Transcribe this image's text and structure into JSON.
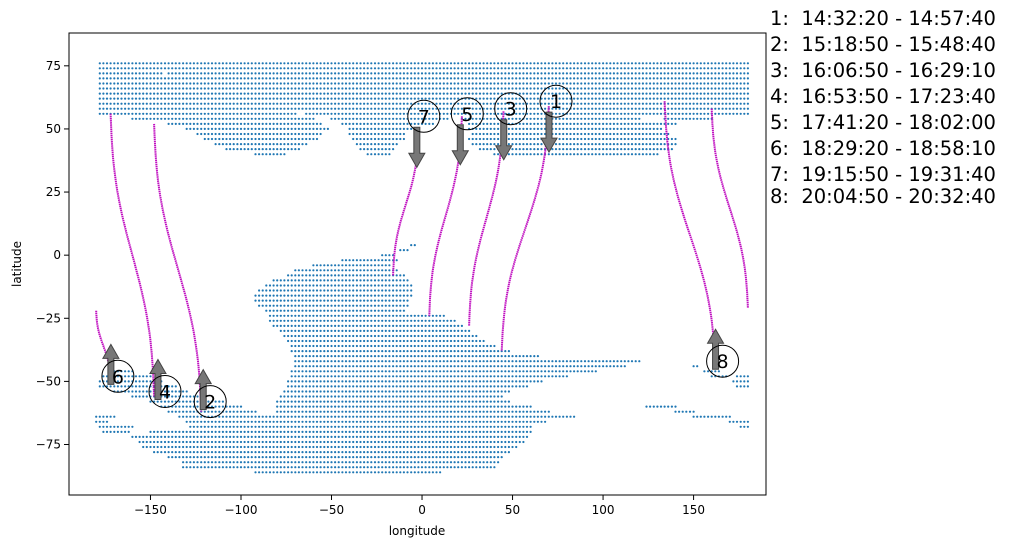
{
  "chart_data": {
    "type": "scatter",
    "xlabel": "longitude",
    "ylabel": "latitude",
    "xlim": [
      -195,
      190
    ],
    "ylim": [
      -95,
      88
    ],
    "xticks": [
      -150,
      -100,
      -50,
      0,
      50,
      100,
      150
    ],
    "yticks": [
      -75,
      -50,
      -25,
      0,
      25,
      50,
      75
    ],
    "colors": {
      "points": "#1f77b4",
      "tracks": "#c010c0",
      "arrows": "#777777"
    },
    "land_mask": {
      "lat_step": 2,
      "lon_step": 2,
      "rows": [
        {
          "lat": 76,
          "lon": [
            [
              -178,
              180
            ]
          ]
        },
        {
          "lat": 74,
          "lon": [
            [
              -178,
              -148
            ],
            [
              -146,
              180
            ]
          ]
        },
        {
          "lat": 72,
          "lon": [
            [
              -178,
              -144
            ],
            [
              -140,
              180
            ]
          ]
        },
        {
          "lat": 70,
          "lon": [
            [
              -178,
              180
            ]
          ]
        },
        {
          "lat": 68,
          "lon": [
            [
              -178,
              180
            ]
          ]
        },
        {
          "lat": 66,
          "lon": [
            [
              -178,
              180
            ]
          ]
        },
        {
          "lat": 64,
          "lon": [
            [
              -178,
              180
            ]
          ]
        },
        {
          "lat": 62,
          "lon": [
            [
              -178,
              180
            ]
          ]
        },
        {
          "lat": 60,
          "lon": [
            [
              -178,
              180
            ]
          ]
        },
        {
          "lat": 58,
          "lon": [
            [
              -178,
              180
            ]
          ]
        },
        {
          "lat": 56,
          "lon": [
            [
              -178,
              -70
            ],
            [
              -64,
              180
            ]
          ]
        },
        {
          "lat": 54,
          "lon": [
            [
              -160,
              -60
            ],
            [
              -50,
              14
            ],
            [
              22,
              120
            ],
            [
              134,
              160
            ]
          ]
        },
        {
          "lat": 52,
          "lon": [
            [
              -140,
              -56
            ],
            [
              -44,
              6
            ],
            [
              26,
              140
            ]
          ]
        },
        {
          "lat": 50,
          "lon": [
            [
              -130,
              -52
            ],
            [
              -40,
              -6
            ],
            [
              26,
              132
            ]
          ]
        },
        {
          "lat": 48,
          "lon": [
            [
              -124,
              -56
            ],
            [
              -40,
              -10
            ],
            [
              28,
              136
            ]
          ]
        },
        {
          "lat": 46,
          "lon": [
            [
              -120,
              -58
            ],
            [
              -38,
              -10
            ],
            [
              26,
              140
            ]
          ]
        },
        {
          "lat": 44,
          "lon": [
            [
              -114,
              -64
            ],
            [
              -36,
              -14
            ],
            [
              28,
              140
            ]
          ]
        },
        {
          "lat": 42,
          "lon": [
            [
              -108,
              -68
            ],
            [
              -34,
              -16
            ],
            [
              32,
              138
            ]
          ]
        },
        {
          "lat": 40,
          "lon": [
            [
              -92,
              -76
            ],
            [
              -30,
              -18
            ],
            [
              40,
              130
            ]
          ]
        },
        {
          "lat": 38,
          "lon": []
        },
        {
          "lat": 4,
          "lon": [
            [
              -6,
              -4
            ]
          ]
        },
        {
          "lat": 2,
          "lon": [
            [
              -12,
              -8
            ]
          ]
        },
        {
          "lat": 0,
          "lon": [
            [
              -22,
              -16
            ]
          ]
        },
        {
          "lat": -2,
          "lon": [
            [
              -44,
              -14
            ]
          ]
        },
        {
          "lat": -4,
          "lon": [
            [
              -60,
              -18
            ]
          ]
        },
        {
          "lat": -6,
          "lon": [
            [
              -70,
              -14
            ]
          ]
        },
        {
          "lat": -8,
          "lon": [
            [
              -74,
              -10
            ]
          ]
        },
        {
          "lat": -10,
          "lon": [
            [
              -82,
              -8
            ]
          ]
        },
        {
          "lat": -12,
          "lon": [
            [
              -86,
              -6
            ]
          ]
        },
        {
          "lat": -14,
          "lon": [
            [
              -90,
              -6
            ]
          ]
        },
        {
          "lat": -16,
          "lon": [
            [
              -92,
              -6
            ]
          ]
        },
        {
          "lat": -18,
          "lon": [
            [
              -92,
              -8
            ]
          ]
        },
        {
          "lat": -20,
          "lon": [
            [
              -90,
              -8
            ]
          ]
        },
        {
          "lat": -22,
          "lon": [
            [
              -86,
              -10
            ]
          ]
        },
        {
          "lat": -24,
          "lon": [
            [
              -84,
              12
            ]
          ]
        },
        {
          "lat": -26,
          "lon": [
            [
              -84,
              18
            ]
          ]
        },
        {
          "lat": -28,
          "lon": [
            [
              -82,
              22
            ]
          ]
        },
        {
          "lat": -30,
          "lon": [
            [
              -78,
              26
            ]
          ]
        },
        {
          "lat": -32,
          "lon": [
            [
              -76,
              30
            ]
          ]
        },
        {
          "lat": -34,
          "lon": [
            [
              -74,
              34
            ]
          ]
        },
        {
          "lat": -36,
          "lon": [
            [
              -72,
              40
            ]
          ]
        },
        {
          "lat": -38,
          "lon": [
            [
              -72,
              48
            ]
          ]
        },
        {
          "lat": -40,
          "lon": [
            [
              -70,
              64
            ]
          ]
        },
        {
          "lat": -42,
          "lon": [
            [
              -70,
              120
            ]
          ]
        },
        {
          "lat": -44,
          "lon": [
            [
              -70,
              112
            ],
            [
              150,
              152
            ]
          ]
        },
        {
          "lat": -46,
          "lon": [
            [
              -170,
              -160
            ],
            [
              -72,
              96
            ],
            [
              156,
              164
            ]
          ]
        },
        {
          "lat": -48,
          "lon": [
            [
              -176,
              -150
            ],
            [
              -72,
              80
            ],
            [
              160,
              168
            ],
            [
              174,
              180
            ]
          ]
        },
        {
          "lat": -50,
          "lon": [
            [
              -178,
              -144
            ],
            [
              -74,
              66
            ],
            [
              172,
              180
            ]
          ]
        },
        {
          "lat": -52,
          "lon": [
            [
              -178,
              -136
            ],
            [
              -74,
              58
            ],
            [
              174,
              180
            ]
          ]
        },
        {
          "lat": -54,
          "lon": [
            [
              -170,
              -130
            ],
            [
              -76,
              48
            ]
          ]
        },
        {
          "lat": -56,
          "lon": [
            [
              -160,
              -120
            ],
            [
              -78,
              44
            ]
          ]
        },
        {
          "lat": -58,
          "lon": [
            [
              -150,
              -110
            ],
            [
              -80,
              48
            ]
          ]
        },
        {
          "lat": -60,
          "lon": [
            [
              -144,
              -100
            ],
            [
              -80,
              60
            ],
            [
              124,
              140
            ]
          ]
        },
        {
          "lat": -62,
          "lon": [
            [
              -140,
              -92
            ],
            [
              -80,
              70
            ],
            [
              140,
              150
            ]
          ]
        },
        {
          "lat": -64,
          "lon": [
            [
              -180,
              -170
            ],
            [
              -134,
              84
            ],
            [
              150,
              170
            ]
          ]
        },
        {
          "lat": -66,
          "lon": [
            [
              -180,
              -174
            ],
            [
              -130,
              68
            ],
            [
              170,
              180
            ]
          ]
        },
        {
          "lat": -68,
          "lon": [
            [
              -178,
              -160
            ],
            [
              -128,
              60
            ],
            [
              176,
              180
            ]
          ]
        },
        {
          "lat": -70,
          "lon": [
            [
              -176,
              -162
            ],
            [
              -150,
              60
            ]
          ]
        },
        {
          "lat": -72,
          "lon": [
            [
              -160,
              58
            ]
          ]
        },
        {
          "lat": -74,
          "lon": [
            [
              -156,
              56
            ]
          ]
        },
        {
          "lat": -76,
          "lon": [
            [
              -154,
              52
            ]
          ]
        },
        {
          "lat": -78,
          "lon": [
            [
              -148,
              48
            ]
          ]
        },
        {
          "lat": -80,
          "lon": [
            [
              -140,
              44
            ]
          ]
        },
        {
          "lat": -82,
          "lon": [
            [
              -132,
              42
            ]
          ]
        },
        {
          "lat": -84,
          "lon": [
            [
              -132,
              40
            ]
          ]
        },
        {
          "lat": -86,
          "lon": [
            [
              -92,
              10
            ]
          ]
        },
        {
          "lat": -88,
          "lon": []
        }
      ]
    },
    "tracks": [
      {
        "id": "1",
        "lon_start": 70,
        "lat_start": 59,
        "lon_end": 44,
        "lat_end": -38
      },
      {
        "id": "2",
        "lon_start": -148,
        "lat_start": 52,
        "lon_end": -122,
        "lat_end": -62
      },
      {
        "id": "3",
        "lon_start": 45,
        "lat_start": 57,
        "lon_end": 26,
        "lat_end": -28
      },
      {
        "id": "4",
        "lon_start": -172,
        "lat_start": 56,
        "lon_end": -148,
        "lat_end": -56
      },
      {
        "id": "5",
        "lon_start": 22,
        "lat_start": 55,
        "lon_end": 4,
        "lat_end": -24
      },
      {
        "id": "6",
        "lon_start": -180,
        "lat_start": -22,
        "lon_end": -172,
        "lat_end": -50
      },
      {
        "id": "7",
        "lon_start": -2,
        "lat_start": 48,
        "lon_end": -16,
        "lat_end": -8
      },
      {
        "id": "8",
        "lon_start": 134,
        "lat_start": 61,
        "lon_end": 162,
        "lat_end": -45
      },
      {
        "id": "8b",
        "lon_start": 160,
        "lat_start": 58,
        "lon_end": 180,
        "lat_end": -21
      }
    ],
    "markers": [
      {
        "label": "1",
        "lon": 74,
        "lat": 61,
        "arrow": "down"
      },
      {
        "label": "2",
        "lon": -117,
        "lat": -58,
        "arrow": "up"
      },
      {
        "label": "3",
        "lon": 49,
        "lat": 58,
        "arrow": "down"
      },
      {
        "label": "4",
        "lon": -142,
        "lat": -54,
        "arrow": "up"
      },
      {
        "label": "5",
        "lon": 25,
        "lat": 56,
        "arrow": "down"
      },
      {
        "label": "6",
        "lon": -168,
        "lat": -48,
        "arrow": "up"
      },
      {
        "label": "7",
        "lon": 1,
        "lat": 55,
        "arrow": "down"
      },
      {
        "label": "8",
        "lon": 166,
        "lat": -42,
        "arrow": "up"
      }
    ]
  },
  "legend": [
    "1:  14:32:20 - 14:57:40",
    "2:  15:18:50 - 15:48:40",
    "3:  16:06:50 - 16:29:10",
    "4:  16:53:50 - 17:23:40",
    "5:  17:41:20 - 18:02:00",
    "6:  18:29:20 - 18:58:10",
    "7:  19:15:50 - 19:31:40",
    "8:  20:04:50 - 20:32:40"
  ]
}
